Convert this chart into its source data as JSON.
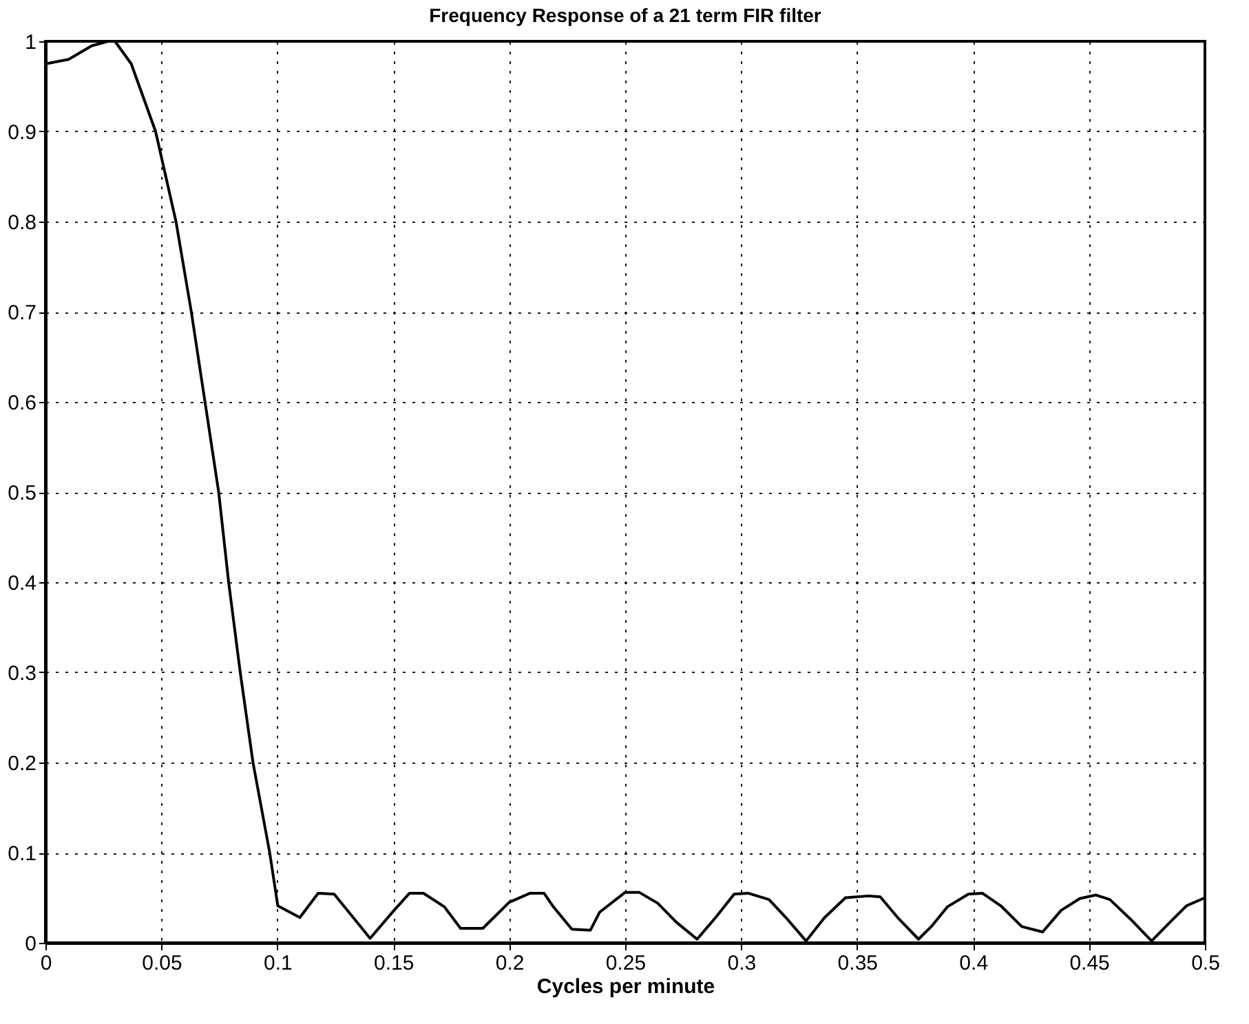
{
  "chart_data": {
    "type": "line",
    "title": "Frequency Response of a 21 term FIR filter",
    "xlabel": "Cycles per minute",
    "x": [
      0,
      0.01,
      0.02,
      0.027,
      0.03,
      0.037,
      0.0475,
      0.0563,
      0.0629,
      0.0688,
      0.0747,
      0.079,
      0.084,
      0.0895,
      0.0967,
      0.1002,
      0.1097,
      0.1176,
      0.1245,
      0.14,
      0.15,
      0.157,
      0.163,
      0.172,
      0.179,
      0.1886,
      0.2,
      0.209,
      0.215,
      0.219,
      0.227,
      0.235,
      0.239,
      0.25,
      0.256,
      0.264,
      0.272,
      0.281,
      0.289,
      0.297,
      0.303,
      0.312,
      0.32,
      0.328,
      0.336,
      0.345,
      0.355,
      0.36,
      0.3675,
      0.3765,
      0.382,
      0.389,
      0.398,
      0.404,
      0.412,
      0.421,
      0.43,
      0.438,
      0.446,
      0.453,
      0.459,
      0.468,
      0.477,
      0.485,
      0.492,
      0.5
    ],
    "series": [
      {
        "color": "#000000",
        "values": [
          0.975,
          0.98,
          0.995,
          1.0,
          1.0,
          0.975,
          0.9,
          0.8,
          0.7,
          0.6,
          0.5,
          0.4,
          0.3,
          0.2,
          0.1,
          0.041,
          0.028,
          0.055,
          0.054,
          0.005,
          0.035,
          0.055,
          0.055,
          0.04,
          0.016,
          0.016,
          0.045,
          0.055,
          0.055,
          0.04,
          0.015,
          0.014,
          0.034,
          0.056,
          0.056,
          0.044,
          0.023,
          0.004,
          0.028,
          0.054,
          0.055,
          0.048,
          0.026,
          0.002,
          0.028,
          0.05,
          0.052,
          0.051,
          0.028,
          0.004,
          0.018,
          0.04,
          0.054,
          0.055,
          0.041,
          0.018,
          0.012,
          0.036,
          0.049,
          0.053,
          0.048,
          0.026,
          0.002,
          0.023,
          0.041,
          0.05
        ]
      }
    ],
    "xlim": [
      0,
      0.5
    ],
    "xticks": [
      0,
      0.05,
      0.1,
      0.15,
      0.2,
      0.25,
      0.3,
      0.35,
      0.4,
      0.45,
      0.5
    ],
    "ylim": [
      0,
      1
    ],
    "yticks": [
      0,
      0.1,
      0.2,
      0.3,
      0.4,
      0.5,
      0.6,
      0.7,
      0.8,
      0.9,
      1
    ],
    "grid": true,
    "line_style": "solid",
    "marker": "none"
  }
}
